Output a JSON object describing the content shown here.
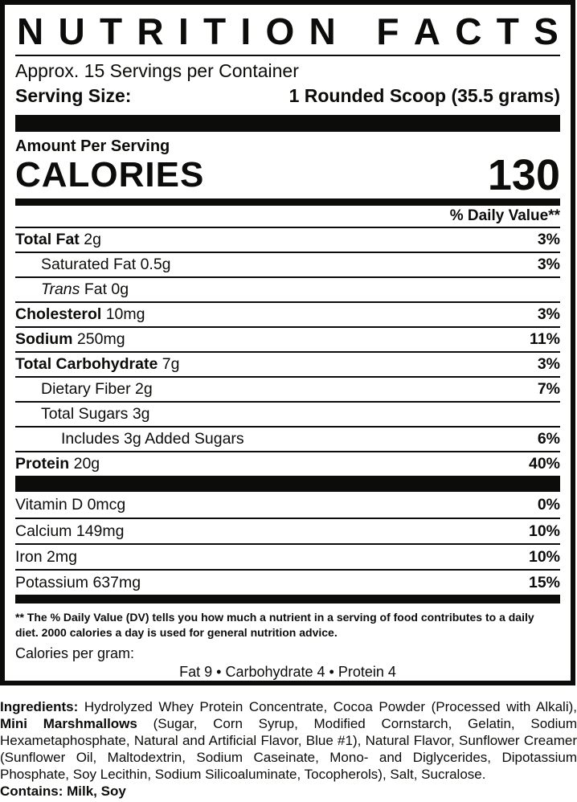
{
  "colors": {
    "ink": "#0c0c0a",
    "background": "#ffffff"
  },
  "header": {
    "title": "NUTRITION FACTS"
  },
  "serving": {
    "servings_per_container": "Approx. 15 Servings per Container",
    "serving_size_label": "Serving Size:",
    "serving_size_value": "1 Rounded Scoop (35.5 grams)"
  },
  "calories": {
    "amount_per_serving_label": "Amount Per Serving",
    "label": "CALORIES",
    "value": "130"
  },
  "daily_value_header": "% Daily Value**",
  "nutrients": [
    {
      "label": "Total Fat",
      "amount": "2g",
      "dv": "3%",
      "level": 0,
      "bold": true
    },
    {
      "label": "Saturated Fat",
      "amount": "0.5g",
      "dv": "3%",
      "level": 1,
      "bold": false
    },
    {
      "label": "Trans",
      "label_suffix": " Fat",
      "amount": "0g",
      "dv": "",
      "level": 1,
      "bold": false,
      "italic": true
    },
    {
      "label": "Cholesterol",
      "amount": "10mg",
      "dv": "3%",
      "level": 0,
      "bold": true
    },
    {
      "label": "Sodium",
      "amount": "250mg",
      "dv": "11%",
      "level": 0,
      "bold": true
    },
    {
      "label": "Total Carbohydrate",
      "amount": "7g",
      "dv": "3%",
      "level": 0,
      "bold": true
    },
    {
      "label": "Dietary Fiber",
      "amount": "2g",
      "dv": "7%",
      "level": 1,
      "bold": false
    },
    {
      "label": "Total Sugars",
      "amount": "3g",
      "dv": "",
      "level": 1,
      "bold": false
    },
    {
      "label": "Includes 3g Added Sugars",
      "amount": "",
      "dv": "6%",
      "level": 2,
      "bold": false
    },
    {
      "label": "Protein",
      "amount": "20g",
      "dv": "40%",
      "level": 0,
      "bold": true
    }
  ],
  "micronutrients": [
    {
      "label": "Vitamin D",
      "amount": "0mcg",
      "dv": "0%"
    },
    {
      "label": "Calcium",
      "amount": "149mg",
      "dv": "10%"
    },
    {
      "label": "Iron",
      "amount": "2mg",
      "dv": "10%"
    },
    {
      "label": "Potassium",
      "amount": "637mg",
      "dv": "15%"
    }
  ],
  "footnote": {
    "daily_value_note": "** The % Daily Value (DV) tells you how much a nutrient in a serving of food contributes to a daily diet. 2000 calories a day is used for general nutrition advice.",
    "calories_per_gram_label": "Calories per gram:",
    "calories_per_gram_values": "Fat 9 • Carbohydrate 4 • Protein 4"
  },
  "ingredients": {
    "segments": [
      {
        "text": "Ingredients: ",
        "bold": true
      },
      {
        "text": "Hydrolyzed Whey Protein Concentrate, Cocoa Powder (Processed with Alkali), ",
        "bold": false
      },
      {
        "text": "Mini Marshmallows",
        "bold": true
      },
      {
        "text": " (Sugar, Corn Syrup, Modified Cornstarch, Gelatin, Sodium Hexametaphosphate, Natural and Artificial Flavor, Blue #1), Natural Flavor, Sunflower Creamer (Sunflower Oil, Maltodextrin, Sodium Caseinate, Mono- and Diglycerides, Dipotassium Phosphate, Soy Lecithin, Sodium Silicoaluminate, Tocopherols), Salt, Sucralose.",
        "bold": false
      }
    ],
    "contains": "Contains: Milk, Soy"
  }
}
